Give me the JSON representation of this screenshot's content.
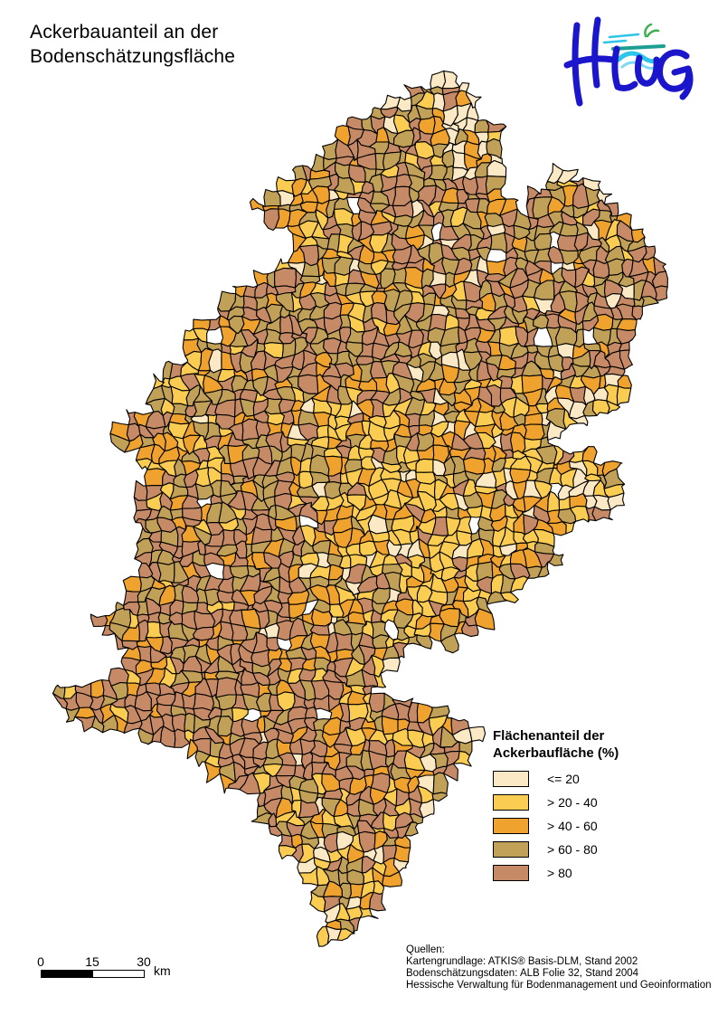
{
  "page": {
    "title_line1": "Ackerbauanteil an der",
    "title_line2": "Bodenschätzungsfläche"
  },
  "logo": {
    "text": "HLUG",
    "letter_color": "#1b15cc",
    "wave_color": "#2ec6e8",
    "bar_color": "#1d9e93",
    "sprout_color": "#3fae4e"
  },
  "map": {
    "region": "Hessen",
    "border_color": "#000000",
    "background": "#ffffff"
  },
  "legend": {
    "title_line1": "Flächenanteil der",
    "title_line2": "Ackerbaufläche (%)",
    "classes": [
      {
        "label": "<= 20",
        "color": "#FBE8C5"
      },
      {
        "label": "> 20 - 40",
        "color": "#FACC51"
      },
      {
        "label": "> 40 - 60",
        "color": "#EFA22D"
      },
      {
        "label": "> 60 - 80",
        "color": "#C1A058"
      },
      {
        "label": "> 80",
        "color": "#C68A67"
      }
    ]
  },
  "scalebar": {
    "tick0": "0",
    "tick1": "15",
    "tick2": "30",
    "unit": "km"
  },
  "sources": {
    "line1": "Quellen:",
    "line2": "Kartengrundlage: ATKIS® Basis-DLM, Stand 2002",
    "line3": "Bodenschätzungsdaten: ALB Folie 32, Stand 2004",
    "line4": "Hessische Verwaltung für Bodenmanagement und Geoinformation"
  }
}
